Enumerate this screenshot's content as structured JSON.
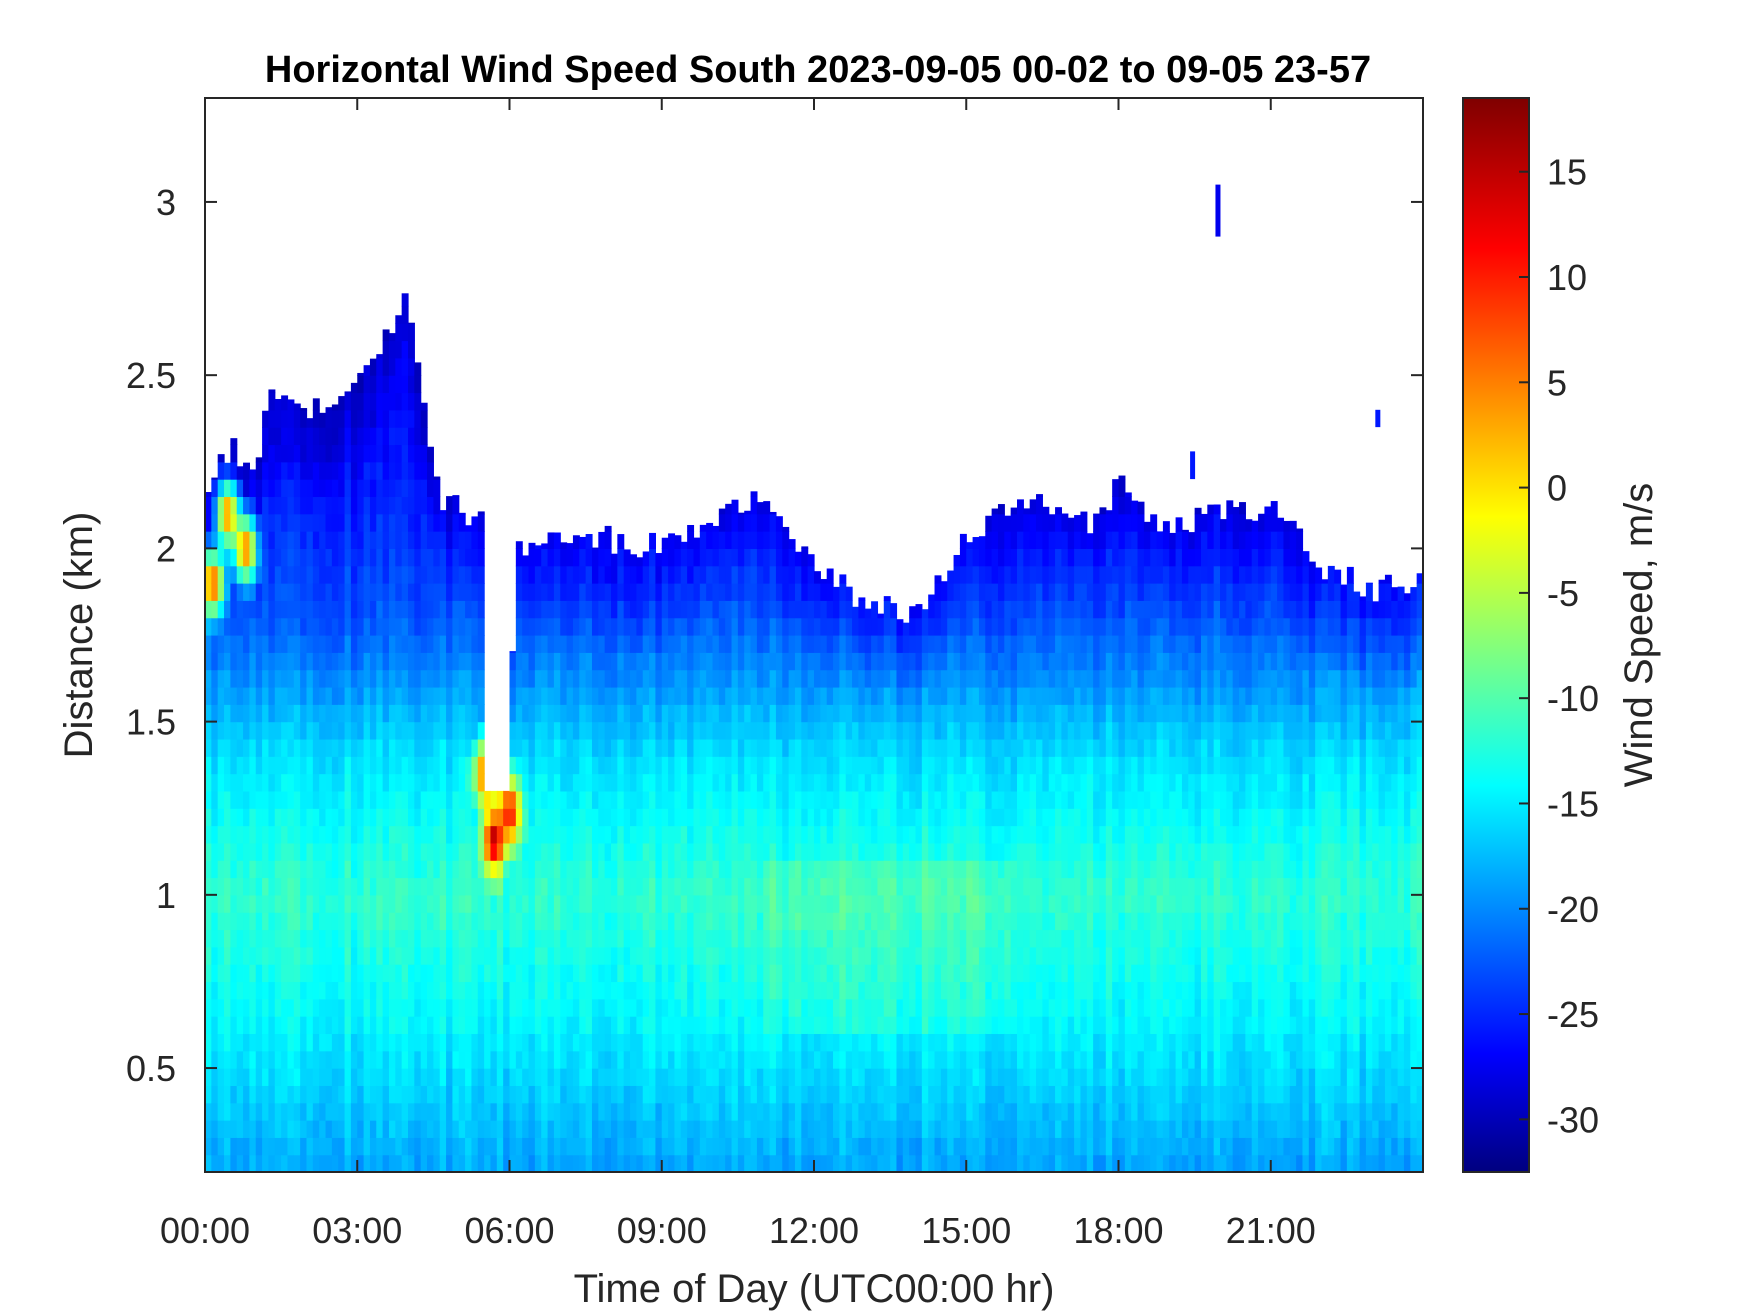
{
  "chart_data": {
    "type": "heatmap",
    "title": "Horizontal Wind Speed South 2023-09-05 00-02 to 09-05 23-57",
    "xlabel": "Time of Day (UTC00:00 hr)",
    "ylabel": "Distance (km)",
    "colorbar_label": "Wind Speed, m/s",
    "colormap": "jet",
    "x_ticks": [
      "00:00",
      "03:00",
      "06:00",
      "09:00",
      "12:00",
      "15:00",
      "18:00",
      "21:00"
    ],
    "x_tick_hours": [
      0,
      3,
      6,
      9,
      12,
      15,
      18,
      21
    ],
    "xlim_hours": [
      0,
      24
    ],
    "y_ticks": [
      "0.5",
      "1",
      "1.5",
      "2",
      "2.5",
      "3"
    ],
    "y_tick_values": [
      0.5,
      1,
      1.5,
      2,
      2.5,
      3
    ],
    "ylim": [
      0.2,
      3.3
    ],
    "colorbar_ticks": [
      "15",
      "10",
      "5",
      "0",
      "-5",
      "-10",
      "-15",
      "-20",
      "-25",
      "-30"
    ],
    "colorbar_tick_values": [
      15,
      10,
      5,
      0,
      -5,
      -10,
      -15,
      -20,
      -25,
      -30
    ],
    "clim": [
      -32.5,
      18.5
    ],
    "grid": false,
    "data_top_km": [
      [
        0.0,
        2.18
      ],
      [
        0.5,
        2.3
      ],
      [
        1.0,
        2.2
      ],
      [
        1.2,
        2.45
      ],
      [
        2.0,
        2.4
      ],
      [
        3.0,
        2.45
      ],
      [
        3.5,
        2.6
      ],
      [
        4.0,
        2.75
      ],
      [
        4.4,
        2.3
      ],
      [
        4.6,
        2.15
      ],
      [
        5.0,
        2.12
      ],
      [
        5.5,
        2.08
      ],
      [
        5.7,
        1.3
      ],
      [
        6.0,
        1.3
      ],
      [
        6.1,
        2.0
      ],
      [
        7.0,
        2.05
      ],
      [
        9.0,
        2.0
      ],
      [
        11.0,
        2.15
      ],
      [
        12.0,
        1.95
      ],
      [
        13.0,
        1.85
      ],
      [
        14.0,
        1.8
      ],
      [
        15.0,
        2.05
      ],
      [
        16.5,
        2.15
      ],
      [
        17.5,
        2.05
      ],
      [
        18.0,
        2.2
      ],
      [
        19.0,
        2.05
      ],
      [
        20.0,
        2.1
      ],
      [
        21.0,
        2.12
      ],
      [
        22.0,
        1.95
      ],
      [
        23.0,
        1.88
      ],
      [
        24.0,
        1.9
      ]
    ],
    "gap_hours": [
      5.45,
      6.0
    ],
    "gap_bottom_km": 1.3,
    "profile_speed_ms": [
      {
        "distance_km": 0.2,
        "speed": -18
      },
      {
        "distance_km": 0.6,
        "speed": -14
      },
      {
        "distance_km": 1.0,
        "speed": -11
      },
      {
        "distance_km": 1.4,
        "speed": -15
      },
      {
        "distance_km": 1.8,
        "speed": -22
      },
      {
        "distance_km": 2.3,
        "speed": -26
      }
    ],
    "hotspots": [
      {
        "time_hr": 5.7,
        "distance_km": 1.16,
        "speed": 16
      },
      {
        "time_hr": 5.55,
        "distance_km": 1.35,
        "speed": 10
      },
      {
        "time_hr": 6.0,
        "distance_km": 1.24,
        "speed": 12
      },
      {
        "time_hr": 0.15,
        "distance_km": 1.9,
        "speed": 8
      },
      {
        "time_hr": 0.45,
        "distance_km": 2.1,
        "speed": 5
      },
      {
        "time_hr": 0.8,
        "distance_km": 2.0,
        "speed": 6
      }
    ],
    "isolated_streaks": [
      {
        "time_hr": 19.95,
        "from_km": 2.9,
        "to_km": 3.05,
        "speed": -27
      },
      {
        "time_hr": 23.1,
        "from_km": 2.35,
        "to_km": 2.4,
        "speed": -25
      },
      {
        "time_hr": 19.45,
        "from_km": 2.2,
        "to_km": 2.28,
        "speed": -25
      }
    ]
  }
}
